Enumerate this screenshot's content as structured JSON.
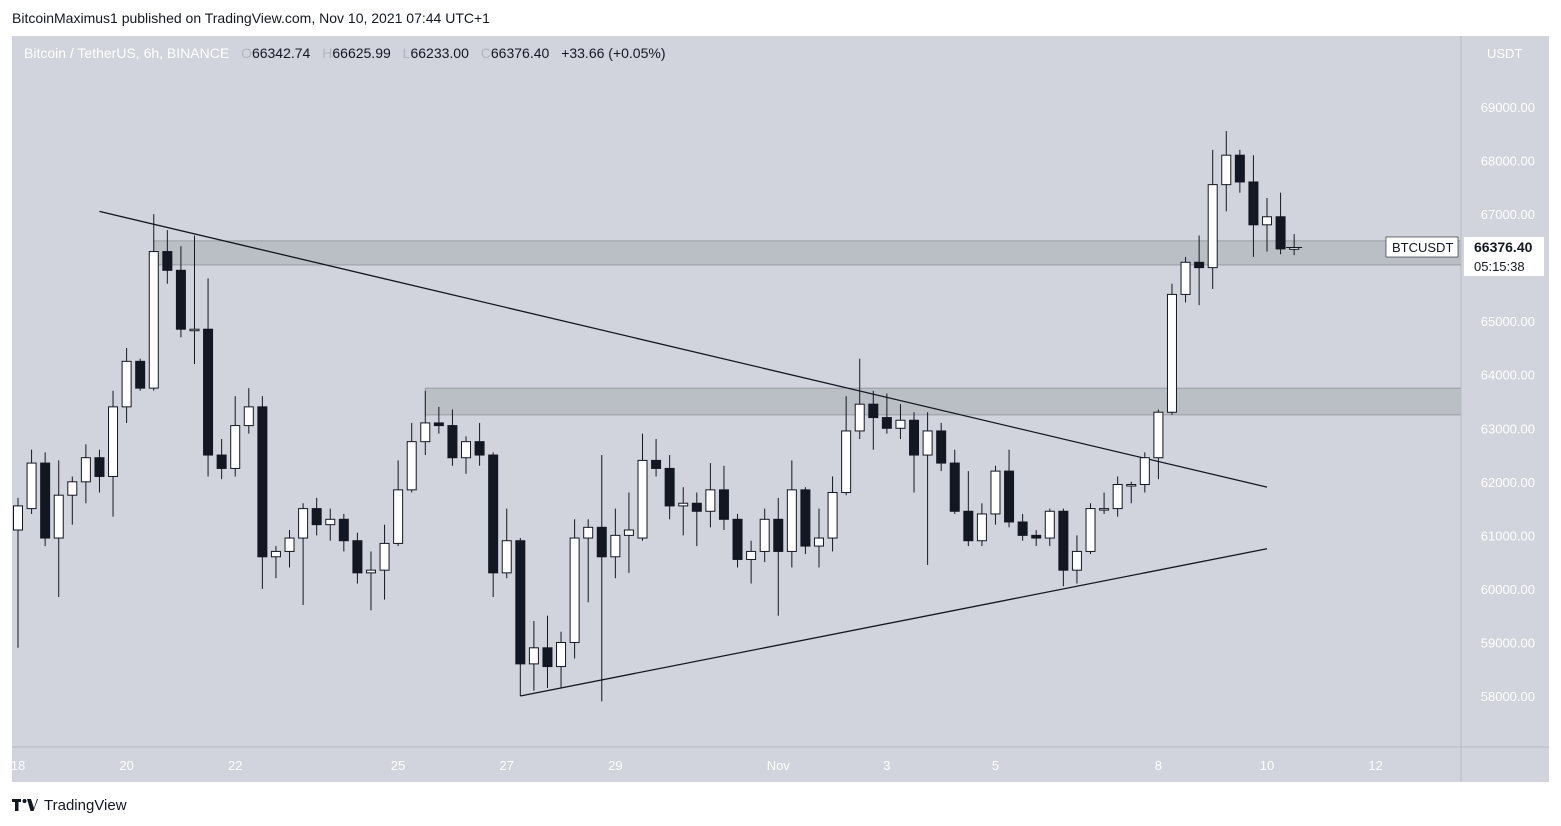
{
  "header": {
    "published_line": "BitcoinMaximus1 published on TradingView.com, Nov 10, 2021 07:44 UTC+1"
  },
  "legend": {
    "symbol": "Bitcoin / TetherUS, 6h, BINANCE",
    "o_label": "O",
    "o": "66342.74",
    "h_label": "H",
    "h": "66625.99",
    "l_label": "L",
    "l": "66233.00",
    "c_label": "C",
    "c": "66376.40",
    "change": "+33.66 (+0.05%)"
  },
  "price_axis": {
    "currency_label": "USDT",
    "price_tag_symbol": "BTCUSDT",
    "price_tag_value": "66376.40",
    "countdown": "05:15:38"
  },
  "footer": {
    "brand": "TradingView",
    "logo_icon": "tradingview-logo-icon"
  },
  "colors": {
    "background": "#d1d4dc",
    "up_fill": "#ffffff",
    "down_fill": "#131722",
    "wick": "#131722",
    "zone": "#a8abb3"
  },
  "chart_data": {
    "type": "candlestick",
    "title": "Bitcoin / TetherUS, 6h, BINANCE",
    "xlabel": "",
    "ylabel": "",
    "ylim": [
      57000,
      70000
    ],
    "yticks": [
      58000,
      59000,
      60000,
      61000,
      62000,
      63000,
      64000,
      65000,
      66000,
      67000,
      68000,
      69000
    ],
    "ytick_labels": [
      "58000.00",
      "59000.00",
      "60000.00",
      "61000.00",
      "62000.00",
      "63000.00",
      "64000.00",
      "65000.00",
      "66000.00",
      "67000.00",
      "68000.00",
      "69000.00"
    ],
    "xlim": [
      "2021-10-17 20:00",
      "2021-11-14 12:00"
    ],
    "xticks": [
      {
        "label": "18",
        "date": "2021-10-18"
      },
      {
        "label": "20",
        "date": "2021-10-20"
      },
      {
        "label": "22",
        "date": "2021-10-22"
      },
      {
        "label": "25",
        "date": "2021-10-25"
      },
      {
        "label": "27",
        "date": "2021-10-27"
      },
      {
        "label": "29",
        "date": "2021-10-29"
      },
      {
        "label": "Nov",
        "date": "2021-11-01"
      },
      {
        "label": "3",
        "date": "2021-11-03"
      },
      {
        "label": "5",
        "date": "2021-11-05"
      },
      {
        "label": "8",
        "date": "2021-11-08"
      },
      {
        "label": "10",
        "date": "2021-11-10"
      },
      {
        "label": "12",
        "date": "2021-11-12"
      }
    ],
    "candles": [
      {
        "t": "2021-10-18 00:00",
        "o": 61100,
        "h": 61700,
        "l": 58900,
        "c": 61550
      },
      {
        "t": "2021-10-18 06:00",
        "o": 61500,
        "h": 62600,
        "l": 61400,
        "c": 62350
      },
      {
        "t": "2021-10-18 12:00",
        "o": 62350,
        "h": 62550,
        "l": 60800,
        "c": 60950
      },
      {
        "t": "2021-10-18 18:00",
        "o": 60950,
        "h": 62400,
        "l": 59850,
        "c": 61750
      },
      {
        "t": "2021-10-19 00:00",
        "o": 61750,
        "h": 62100,
        "l": 61200,
        "c": 62000
      },
      {
        "t": "2021-10-19 06:00",
        "o": 62000,
        "h": 62700,
        "l": 61600,
        "c": 62450
      },
      {
        "t": "2021-10-19 12:00",
        "o": 62450,
        "h": 62600,
        "l": 61800,
        "c": 62100
      },
      {
        "t": "2021-10-19 18:00",
        "o": 62100,
        "h": 63700,
        "l": 61350,
        "c": 63400
      },
      {
        "t": "2021-10-20 00:00",
        "o": 63400,
        "h": 64500,
        "l": 63100,
        "c": 64250
      },
      {
        "t": "2021-10-20 06:00",
        "o": 64250,
        "h": 64300,
        "l": 63700,
        "c": 63750
      },
      {
        "t": "2021-10-20 12:00",
        "o": 63750,
        "h": 67000,
        "l": 63700,
        "c": 66300
      },
      {
        "t": "2021-10-20 18:00",
        "o": 66300,
        "h": 66700,
        "l": 65700,
        "c": 65950
      },
      {
        "t": "2021-10-21 00:00",
        "o": 65950,
        "h": 66400,
        "l": 64700,
        "c": 64850
      },
      {
        "t": "2021-10-21 06:00",
        "o": 64850,
        "h": 66600,
        "l": 64200,
        "c": 64850
      },
      {
        "t": "2021-10-21 12:00",
        "o": 64850,
        "h": 65800,
        "l": 62100,
        "c": 62500
      },
      {
        "t": "2021-10-21 18:00",
        "o": 62500,
        "h": 62800,
        "l": 62050,
        "c": 62250
      },
      {
        "t": "2021-10-22 00:00",
        "o": 62250,
        "h": 63600,
        "l": 62100,
        "c": 63050
      },
      {
        "t": "2021-10-22 06:00",
        "o": 63050,
        "h": 63750,
        "l": 62900,
        "c": 63400
      },
      {
        "t": "2021-10-22 12:00",
        "o": 63400,
        "h": 63600,
        "l": 60000,
        "c": 60600
      },
      {
        "t": "2021-10-22 18:00",
        "o": 60600,
        "h": 60800,
        "l": 60200,
        "c": 60700
      },
      {
        "t": "2021-10-23 00:00",
        "o": 60700,
        "h": 61100,
        "l": 60400,
        "c": 60950
      },
      {
        "t": "2021-10-23 06:00",
        "o": 60950,
        "h": 61600,
        "l": 59700,
        "c": 61500
      },
      {
        "t": "2021-10-23 12:00",
        "o": 61500,
        "h": 61700,
        "l": 61000,
        "c": 61200
      },
      {
        "t": "2021-10-23 18:00",
        "o": 61200,
        "h": 61500,
        "l": 60900,
        "c": 61300
      },
      {
        "t": "2021-10-24 00:00",
        "o": 61300,
        "h": 61400,
        "l": 60700,
        "c": 60900
      },
      {
        "t": "2021-10-24 06:00",
        "o": 60900,
        "h": 61050,
        "l": 60100,
        "c": 60300
      },
      {
        "t": "2021-10-24 12:00",
        "o": 60300,
        "h": 60700,
        "l": 59600,
        "c": 60350
      },
      {
        "t": "2021-10-24 18:00",
        "o": 60350,
        "h": 61200,
        "l": 59800,
        "c": 60850
      },
      {
        "t": "2021-10-25 00:00",
        "o": 60850,
        "h": 62400,
        "l": 60800,
        "c": 61850
      },
      {
        "t": "2021-10-25 06:00",
        "o": 61850,
        "h": 63100,
        "l": 61800,
        "c": 62750
      },
      {
        "t": "2021-10-25 12:00",
        "o": 62750,
        "h": 63700,
        "l": 62500,
        "c": 63100
      },
      {
        "t": "2021-10-25 18:00",
        "o": 63100,
        "h": 63400,
        "l": 62900,
        "c": 63050
      },
      {
        "t": "2021-10-26 00:00",
        "o": 63050,
        "h": 63350,
        "l": 62300,
        "c": 62450
      },
      {
        "t": "2021-10-26 06:00",
        "o": 62450,
        "h": 62850,
        "l": 62150,
        "c": 62750
      },
      {
        "t": "2021-10-26 12:00",
        "o": 62750,
        "h": 63100,
        "l": 62300,
        "c": 62500
      },
      {
        "t": "2021-10-26 18:00",
        "o": 62500,
        "h": 62550,
        "l": 59850,
        "c": 60300
      },
      {
        "t": "2021-10-27 00:00",
        "o": 60300,
        "h": 61500,
        "l": 60200,
        "c": 60900
      },
      {
        "t": "2021-10-27 06:00",
        "o": 60900,
        "h": 60950,
        "l": 58000,
        "c": 58600
      },
      {
        "t": "2021-10-27 12:00",
        "o": 58600,
        "h": 59400,
        "l": 58100,
        "c": 58900
      },
      {
        "t": "2021-10-27 18:00",
        "o": 58900,
        "h": 59500,
        "l": 58150,
        "c": 58550
      },
      {
        "t": "2021-10-28 00:00",
        "o": 58550,
        "h": 59200,
        "l": 58150,
        "c": 59000
      },
      {
        "t": "2021-10-28 06:00",
        "o": 59000,
        "h": 61300,
        "l": 58700,
        "c": 60950
      },
      {
        "t": "2021-10-28 12:00",
        "o": 60950,
        "h": 61300,
        "l": 59750,
        "c": 61150
      },
      {
        "t": "2021-10-28 18:00",
        "o": 61150,
        "h": 62500,
        "l": 57900,
        "c": 60600
      },
      {
        "t": "2021-10-29 00:00",
        "o": 60600,
        "h": 61500,
        "l": 60200,
        "c": 61000
      },
      {
        "t": "2021-10-29 06:00",
        "o": 61000,
        "h": 61800,
        "l": 60300,
        "c": 61100
      },
      {
        "t": "2021-10-29 12:00",
        "o": 60950,
        "h": 62900,
        "l": 60900,
        "c": 62400
      },
      {
        "t": "2021-10-29 18:00",
        "o": 62400,
        "h": 62800,
        "l": 62100,
        "c": 62250
      },
      {
        "t": "2021-10-30 00:00",
        "o": 62250,
        "h": 62500,
        "l": 61300,
        "c": 61550
      },
      {
        "t": "2021-10-30 06:00",
        "o": 61550,
        "h": 61900,
        "l": 61000,
        "c": 61600
      },
      {
        "t": "2021-10-30 12:00",
        "o": 61600,
        "h": 61800,
        "l": 60800,
        "c": 61450
      },
      {
        "t": "2021-10-30 18:00",
        "o": 61450,
        "h": 62350,
        "l": 61150,
        "c": 61850
      },
      {
        "t": "2021-10-31 00:00",
        "o": 61850,
        "h": 62300,
        "l": 61100,
        "c": 61300
      },
      {
        "t": "2021-10-31 06:00",
        "o": 61300,
        "h": 61400,
        "l": 60400,
        "c": 60550
      },
      {
        "t": "2021-10-31 12:00",
        "o": 60550,
        "h": 60900,
        "l": 60100,
        "c": 60700
      },
      {
        "t": "2021-10-31 18:00",
        "o": 60700,
        "h": 61500,
        "l": 60500,
        "c": 61300
      },
      {
        "t": "2021-11-01 00:00",
        "o": 61300,
        "h": 61700,
        "l": 59500,
        "c": 60700
      },
      {
        "t": "2021-11-01 06:00",
        "o": 60700,
        "h": 62400,
        "l": 60400,
        "c": 61850
      },
      {
        "t": "2021-11-01 12:00",
        "o": 61850,
        "h": 61900,
        "l": 60650,
        "c": 60800
      },
      {
        "t": "2021-11-01 18:00",
        "o": 60800,
        "h": 61500,
        "l": 60400,
        "c": 60950
      },
      {
        "t": "2021-11-02 00:00",
        "o": 60950,
        "h": 62100,
        "l": 60700,
        "c": 61800
      },
      {
        "t": "2021-11-02 06:00",
        "o": 61800,
        "h": 63600,
        "l": 61750,
        "c": 62950
      },
      {
        "t": "2021-11-02 12:00",
        "o": 62950,
        "h": 64300,
        "l": 62800,
        "c": 63450
      },
      {
        "t": "2021-11-02 18:00",
        "o": 63450,
        "h": 63700,
        "l": 62600,
        "c": 63200
      },
      {
        "t": "2021-11-03 00:00",
        "o": 63200,
        "h": 63650,
        "l": 62900,
        "c": 63000
      },
      {
        "t": "2021-11-03 06:00",
        "o": 63000,
        "h": 63450,
        "l": 62800,
        "c": 63150
      },
      {
        "t": "2021-11-03 12:00",
        "o": 63150,
        "h": 63300,
        "l": 61800,
        "c": 62500
      },
      {
        "t": "2021-11-03 18:00",
        "o": 62500,
        "h": 63300,
        "l": 60450,
        "c": 62950
      },
      {
        "t": "2021-11-04 00:00",
        "o": 62950,
        "h": 63100,
        "l": 62200,
        "c": 62350
      },
      {
        "t": "2021-11-04 06:00",
        "o": 62350,
        "h": 62600,
        "l": 61400,
        "c": 61450
      },
      {
        "t": "2021-11-04 12:00",
        "o": 61450,
        "h": 62200,
        "l": 60800,
        "c": 60900
      },
      {
        "t": "2021-11-04 18:00",
        "o": 60900,
        "h": 61600,
        "l": 60800,
        "c": 61400
      },
      {
        "t": "2021-11-05 00:00",
        "o": 61400,
        "h": 62300,
        "l": 61200,
        "c": 62200
      },
      {
        "t": "2021-11-05 06:00",
        "o": 62200,
        "h": 62600,
        "l": 61150,
        "c": 61250
      },
      {
        "t": "2021-11-05 12:00",
        "o": 61250,
        "h": 61400,
        "l": 60900,
        "c": 61000
      },
      {
        "t": "2021-11-05 18:00",
        "o": 61000,
        "h": 61100,
        "l": 60800,
        "c": 60950
      },
      {
        "t": "2021-11-06 00:00",
        "o": 60950,
        "h": 61500,
        "l": 60800,
        "c": 61450
      },
      {
        "t": "2021-11-06 06:00",
        "o": 61450,
        "h": 61500,
        "l": 60050,
        "c": 60350
      },
      {
        "t": "2021-11-06 12:00",
        "o": 60350,
        "h": 61000,
        "l": 60100,
        "c": 60700
      },
      {
        "t": "2021-11-06 18:00",
        "o": 60700,
        "h": 61600,
        "l": 60650,
        "c": 61500
      },
      {
        "t": "2021-11-07 00:00",
        "o": 61500,
        "h": 61800,
        "l": 61400,
        "c": 61500
      },
      {
        "t": "2021-11-07 06:00",
        "o": 61500,
        "h": 62100,
        "l": 61350,
        "c": 61950
      },
      {
        "t": "2021-11-07 12:00",
        "o": 61950,
        "h": 62000,
        "l": 61600,
        "c": 61950
      },
      {
        "t": "2021-11-07 18:00",
        "o": 61950,
        "h": 62550,
        "l": 61800,
        "c": 62450
      },
      {
        "t": "2021-11-08 00:00",
        "o": 62450,
        "h": 63350,
        "l": 62050,
        "c": 63300
      },
      {
        "t": "2021-11-08 06:00",
        "o": 63300,
        "h": 65700,
        "l": 63250,
        "c": 65500
      },
      {
        "t": "2021-11-08 12:00",
        "o": 65500,
        "h": 66200,
        "l": 65350,
        "c": 66100
      },
      {
        "t": "2021-11-08 18:00",
        "o": 66100,
        "h": 66600,
        "l": 65300,
        "c": 66000
      },
      {
        "t": "2021-11-09 00:00",
        "o": 66000,
        "h": 68200,
        "l": 65600,
        "c": 67550
      },
      {
        "t": "2021-11-09 06:00",
        "o": 67550,
        "h": 68550,
        "l": 67050,
        "c": 68100
      },
      {
        "t": "2021-11-09 12:00",
        "o": 68100,
        "h": 68200,
        "l": 67400,
        "c": 67600
      },
      {
        "t": "2021-11-09 18:00",
        "o": 67600,
        "h": 68100,
        "l": 66200,
        "c": 66800
      },
      {
        "t": "2021-11-10 00:00",
        "o": 66800,
        "h": 67300,
        "l": 66300,
        "c": 66950
      },
      {
        "t": "2021-11-10 06:00",
        "o": 66950,
        "h": 67400,
        "l": 66250,
        "c": 66350
      },
      {
        "t": "2021-11-10 12:00",
        "o": 66342.74,
        "h": 66625.99,
        "l": 66233,
        "c": 66376.4
      }
    ],
    "zones": [
      {
        "from": "2021-10-20 12:00",
        "to": "2021-11-14 12:00",
        "low": 66050,
        "high": 66500
      },
      {
        "from": "2021-10-25 12:00",
        "to": "2021-11-14 12:00",
        "low": 63250,
        "high": 63750
      }
    ],
    "trendlines": [
      {
        "from": {
          "t": "2021-10-19 12:00",
          "p": 67050
        },
        "to": {
          "t": "2021-11-10 00:00",
          "p": 61900
        }
      },
      {
        "from": {
          "t": "2021-10-27 06:00",
          "p": 58000
        },
        "to": {
          "t": "2021-11-10 00:00",
          "p": 60750
        }
      }
    ],
    "grid": false,
    "legend": "top-left"
  }
}
